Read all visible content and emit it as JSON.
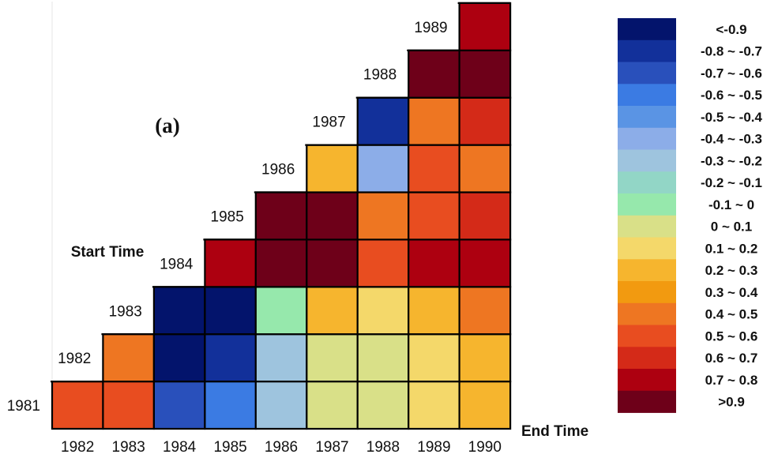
{
  "chart_data": {
    "type": "heatmap",
    "panel_label": "(a)",
    "ylabel": "Start Time",
    "xlabel": "End Time",
    "start_years": [
      "1981",
      "1982",
      "1983",
      "1984",
      "1985",
      "1986",
      "1987",
      "1988",
      "1989"
    ],
    "end_years": [
      "1982",
      "1983",
      "1984",
      "1985",
      "1986",
      "1987",
      "1988",
      "1989",
      "1990"
    ],
    "bins": [
      {
        "label": "<-0.9",
        "color": "#03146c"
      },
      {
        "label": "-0.8 ~ -0.7",
        "color": "#12309a"
      },
      {
        "label": "-0.7 ~ -0.6",
        "color": "#2950bb"
      },
      {
        "label": "-0.6 ~ -0.5",
        "color": "#3b7be3"
      },
      {
        "label": "-0.5 ~ -0.4",
        "color": "#5a94e4"
      },
      {
        "label": "-0.4 ~ -0.3",
        "color": "#8cade8"
      },
      {
        "label": "-0.3 ~ -0.2",
        "color": "#9ec4de"
      },
      {
        "label": "-0.2 ~ -0.1",
        "color": "#92d6c6"
      },
      {
        "label": "-0.1 ~ 0",
        "color": "#96e8ac"
      },
      {
        "label": "0 ~ 0.1",
        "color": "#d9e088"
      },
      {
        "label": "0.1 ~ 0.2",
        "color": "#f4d86a"
      },
      {
        "label": "0.2 ~ 0.3",
        "color": "#f6b52e"
      },
      {
        "label": "0.3 ~ 0.4",
        "color": "#f29a10"
      },
      {
        "label": "0.4 ~ 0.5",
        "color": "#ee7622"
      },
      {
        "label": "0.5 ~ 0.6",
        "color": "#e84d20"
      },
      {
        "label": "0.6 ~ 0.7",
        "color": "#d42a18"
      },
      {
        "label": "0.7 ~ 0.8",
        "color": "#ad0010"
      },
      {
        "label": ">0.9",
        "color": "#6e0019"
      }
    ],
    "cells": [
      {
        "start": "1981",
        "end": "1982",
        "bin": "0.5 ~ 0.6"
      },
      {
        "start": "1981",
        "end": "1983",
        "bin": "0.5 ~ 0.6"
      },
      {
        "start": "1981",
        "end": "1984",
        "bin": "-0.7 ~ -0.6"
      },
      {
        "start": "1981",
        "end": "1985",
        "bin": "-0.6 ~ -0.5"
      },
      {
        "start": "1981",
        "end": "1986",
        "bin": "-0.3 ~ -0.2"
      },
      {
        "start": "1981",
        "end": "1987",
        "bin": "0 ~ 0.1"
      },
      {
        "start": "1981",
        "end": "1988",
        "bin": "0 ~ 0.1"
      },
      {
        "start": "1981",
        "end": "1989",
        "bin": "0.1 ~ 0.2"
      },
      {
        "start": "1981",
        "end": "1990",
        "bin": "0.2 ~ 0.3"
      },
      {
        "start": "1982",
        "end": "1983",
        "bin": "0.4 ~ 0.5"
      },
      {
        "start": "1982",
        "end": "1984",
        "bin": "<-0.9"
      },
      {
        "start": "1982",
        "end": "1985",
        "bin": "-0.8 ~ -0.7"
      },
      {
        "start": "1982",
        "end": "1986",
        "bin": "-0.3 ~ -0.2"
      },
      {
        "start": "1982",
        "end": "1987",
        "bin": "0 ~ 0.1"
      },
      {
        "start": "1982",
        "end": "1988",
        "bin": "0 ~ 0.1"
      },
      {
        "start": "1982",
        "end": "1989",
        "bin": "0.1 ~ 0.2"
      },
      {
        "start": "1982",
        "end": "1990",
        "bin": "0.2 ~ 0.3"
      },
      {
        "start": "1983",
        "end": "1984",
        "bin": "<-0.9"
      },
      {
        "start": "1983",
        "end": "1985",
        "bin": "<-0.9"
      },
      {
        "start": "1983",
        "end": "1986",
        "bin": "-0.1 ~ 0"
      },
      {
        "start": "1983",
        "end": "1987",
        "bin": "0.2 ~ 0.3"
      },
      {
        "start": "1983",
        "end": "1988",
        "bin": "0.1 ~ 0.2"
      },
      {
        "start": "1983",
        "end": "1989",
        "bin": "0.2 ~ 0.3"
      },
      {
        "start": "1983",
        "end": "1990",
        "bin": "0.4 ~ 0.5"
      },
      {
        "start": "1984",
        "end": "1985",
        "bin": "0.7 ~ 0.8"
      },
      {
        "start": "1984",
        "end": "1986",
        "bin": ">0.9"
      },
      {
        "start": "1984",
        "end": "1987",
        "bin": ">0.9"
      },
      {
        "start": "1984",
        "end": "1988",
        "bin": "0.5 ~ 0.6"
      },
      {
        "start": "1984",
        "end": "1989",
        "bin": "0.7 ~ 0.8"
      },
      {
        "start": "1984",
        "end": "1990",
        "bin": "0.7 ~ 0.8"
      },
      {
        "start": "1985",
        "end": "1986",
        "bin": ">0.9"
      },
      {
        "start": "1985",
        "end": "1987",
        "bin": ">0.9"
      },
      {
        "start": "1985",
        "end": "1988",
        "bin": "0.4 ~ 0.5"
      },
      {
        "start": "1985",
        "end": "1989",
        "bin": "0.5 ~ 0.6"
      },
      {
        "start": "1985",
        "end": "1990",
        "bin": "0.6 ~ 0.7"
      },
      {
        "start": "1986",
        "end": "1987",
        "bin": "0.2 ~ 0.3"
      },
      {
        "start": "1986",
        "end": "1988",
        "bin": "-0.4 ~ -0.3"
      },
      {
        "start": "1986",
        "end": "1989",
        "bin": "0.5 ~ 0.6"
      },
      {
        "start": "1986",
        "end": "1990",
        "bin": "0.4 ~ 0.5"
      },
      {
        "start": "1987",
        "end": "1988",
        "bin": "-0.8 ~ -0.7"
      },
      {
        "start": "1987",
        "end": "1989",
        "bin": "0.4 ~ 0.5"
      },
      {
        "start": "1987",
        "end": "1990",
        "bin": "0.6 ~ 0.7"
      },
      {
        "start": "1988",
        "end": "1989",
        "bin": ">0.9"
      },
      {
        "start": "1988",
        "end": "1990",
        "bin": ">0.9"
      },
      {
        "start": "1989",
        "end": "1990",
        "bin": "0.7 ~ 0.8"
      }
    ]
  }
}
